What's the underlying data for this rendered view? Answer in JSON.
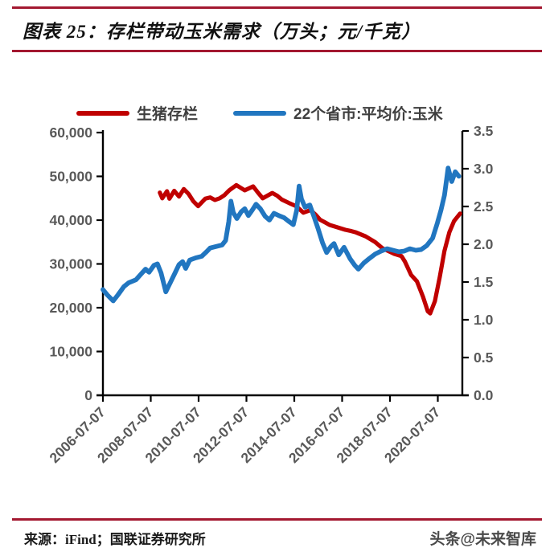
{
  "header": {
    "title": "图表 25：存栏带动玉米需求（万头；元/千克）"
  },
  "footer": {
    "source": "来源：iFind；国联证券研究所",
    "watermark": "头条@未来智库"
  },
  "colors": {
    "rule": "#A31830",
    "axis": "#000000",
    "tick_label": "#595959",
    "pig_red": "#C00000",
    "corn_blue": "#2176C0"
  },
  "chart_data": {
    "type": "line",
    "title": "存栏带动玉米需求（万头；元/千克）",
    "legend_position": "top",
    "grid": false,
    "x_axis": {
      "tick_labels": [
        "2006-07-07",
        "2008-07-07",
        "2010-07-07",
        "2012-07-07",
        "2014-07-07",
        "2016-07-07",
        "2018-07-07",
        "2020-07-07"
      ],
      "start_year": 2006.52,
      "end_year": 2021.55
    },
    "y_left": {
      "min": 0,
      "max": 60000,
      "tick_labels": [
        "0",
        "10,000",
        "20,000",
        "30,000",
        "40,000",
        "50,000",
        "60,000"
      ]
    },
    "y_right": {
      "min": 0,
      "max": 3.5,
      "tick_labels": [
        "0.0",
        "0.5",
        "1.0",
        "1.5",
        "2.0",
        "2.5",
        "3.0",
        "3.5"
      ]
    },
    "series": [
      {
        "name": "生猪存栏",
        "axis": "left",
        "color": "#C00000",
        "points": [
          [
            2008.9,
            46300
          ],
          [
            2009.0,
            45000
          ],
          [
            2009.2,
            46600
          ],
          [
            2009.3,
            44900
          ],
          [
            2009.5,
            46700
          ],
          [
            2009.7,
            45400
          ],
          [
            2009.9,
            47100
          ],
          [
            2010.1,
            46000
          ],
          [
            2010.3,
            44300
          ],
          [
            2010.5,
            43200
          ],
          [
            2010.8,
            44900
          ],
          [
            2011.0,
            45200
          ],
          [
            2011.2,
            44600
          ],
          [
            2011.4,
            45000
          ],
          [
            2011.6,
            45700
          ],
          [
            2011.8,
            46800
          ],
          [
            2012.1,
            48000
          ],
          [
            2012.3,
            47300
          ],
          [
            2012.45,
            46800
          ],
          [
            2012.8,
            47700
          ],
          [
            2013.0,
            46300
          ],
          [
            2013.2,
            45000
          ],
          [
            2013.6,
            46200
          ],
          [
            2013.8,
            45600
          ],
          [
            2014.0,
            44700
          ],
          [
            2014.3,
            43900
          ],
          [
            2014.6,
            43200
          ],
          [
            2014.9,
            41700
          ],
          [
            2015.2,
            42300
          ],
          [
            2015.4,
            41300
          ],
          [
            2015.6,
            40100
          ],
          [
            2015.8,
            39500
          ],
          [
            2016.0,
            38900
          ],
          [
            2016.3,
            38400
          ],
          [
            2016.65,
            37800
          ],
          [
            2016.9,
            37500
          ],
          [
            2017.1,
            37200
          ],
          [
            2017.5,
            36300
          ],
          [
            2017.9,
            35000
          ],
          [
            2018.2,
            33600
          ],
          [
            2018.5,
            32800
          ],
          [
            2018.7,
            32300
          ],
          [
            2019.0,
            31800
          ],
          [
            2019.15,
            30500
          ],
          [
            2019.4,
            27500
          ],
          [
            2019.65,
            26000
          ],
          [
            2019.9,
            22500
          ],
          [
            2020.1,
            19200
          ],
          [
            2020.2,
            18700
          ],
          [
            2020.4,
            21500
          ],
          [
            2020.6,
            27000
          ],
          [
            2020.8,
            33000
          ],
          [
            2021.0,
            37200
          ],
          [
            2021.2,
            39800
          ],
          [
            2021.45,
            41500
          ]
        ]
      },
      {
        "name": "22个省市:平均价:玉米",
        "axis": "right",
        "color": "#2176C0",
        "points": [
          [
            2006.52,
            1.4
          ],
          [
            2006.7,
            1.33
          ],
          [
            2006.95,
            1.25
          ],
          [
            2007.15,
            1.33
          ],
          [
            2007.4,
            1.44
          ],
          [
            2007.6,
            1.49
          ],
          [
            2007.9,
            1.53
          ],
          [
            2008.1,
            1.6
          ],
          [
            2008.3,
            1.67
          ],
          [
            2008.45,
            1.63
          ],
          [
            2008.65,
            1.72
          ],
          [
            2008.8,
            1.74
          ],
          [
            2008.95,
            1.62
          ],
          [
            2009.15,
            1.37
          ],
          [
            2009.35,
            1.5
          ],
          [
            2009.55,
            1.63
          ],
          [
            2009.7,
            1.73
          ],
          [
            2009.85,
            1.77
          ],
          [
            2009.98,
            1.68
          ],
          [
            2010.15,
            1.79
          ],
          [
            2010.4,
            1.82
          ],
          [
            2010.65,
            1.84
          ],
          [
            2010.85,
            1.9
          ],
          [
            2011.0,
            1.95
          ],
          [
            2011.25,
            1.97
          ],
          [
            2011.5,
            1.99
          ],
          [
            2011.65,
            2.05
          ],
          [
            2011.78,
            2.3
          ],
          [
            2011.87,
            2.57
          ],
          [
            2011.97,
            2.42
          ],
          [
            2012.12,
            2.34
          ],
          [
            2012.3,
            2.43
          ],
          [
            2012.45,
            2.47
          ],
          [
            2012.6,
            2.38
          ],
          [
            2012.78,
            2.46
          ],
          [
            2012.92,
            2.53
          ],
          [
            2013.1,
            2.47
          ],
          [
            2013.3,
            2.37
          ],
          [
            2013.48,
            2.32
          ],
          [
            2013.67,
            2.41
          ],
          [
            2013.87,
            2.38
          ],
          [
            2014.1,
            2.35
          ],
          [
            2014.3,
            2.3
          ],
          [
            2014.48,
            2.26
          ],
          [
            2014.62,
            2.45
          ],
          [
            2014.72,
            2.77
          ],
          [
            2014.82,
            2.6
          ],
          [
            2014.97,
            2.49
          ],
          [
            2015.17,
            2.52
          ],
          [
            2015.35,
            2.36
          ],
          [
            2015.52,
            2.2
          ],
          [
            2015.7,
            2.02
          ],
          [
            2015.87,
            1.89
          ],
          [
            2016.05,
            1.97
          ],
          [
            2016.18,
            2.01
          ],
          [
            2016.38,
            1.86
          ],
          [
            2016.6,
            1.96
          ],
          [
            2016.85,
            1.81
          ],
          [
            2017.05,
            1.72
          ],
          [
            2017.2,
            1.67
          ],
          [
            2017.42,
            1.75
          ],
          [
            2017.65,
            1.81
          ],
          [
            2017.9,
            1.87
          ],
          [
            2018.15,
            1.91
          ],
          [
            2018.4,
            1.94
          ],
          [
            2018.65,
            1.92
          ],
          [
            2018.9,
            1.9
          ],
          [
            2019.12,
            1.91
          ],
          [
            2019.35,
            1.94
          ],
          [
            2019.6,
            1.92
          ],
          [
            2019.82,
            1.93
          ],
          [
            2020.05,
            1.98
          ],
          [
            2020.3,
            2.08
          ],
          [
            2020.5,
            2.28
          ],
          [
            2020.65,
            2.45
          ],
          [
            2020.8,
            2.65
          ],
          [
            2020.95,
            3.01
          ],
          [
            2021.1,
            2.83
          ],
          [
            2021.25,
            2.96
          ],
          [
            2021.4,
            2.9
          ]
        ]
      }
    ]
  }
}
